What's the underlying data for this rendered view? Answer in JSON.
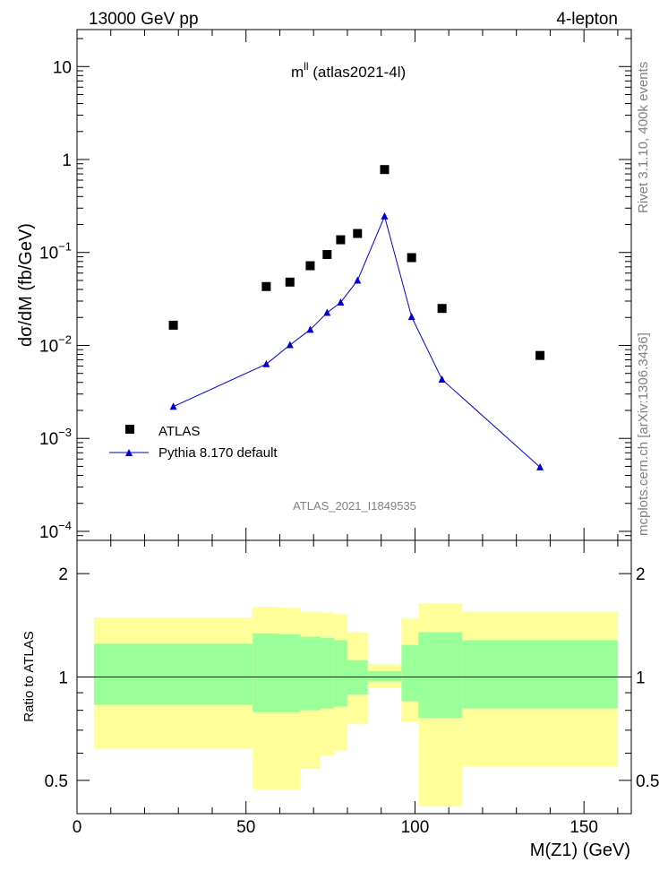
{
  "header": {
    "left": "13000 GeV pp",
    "right": "4-lepton"
  },
  "side_labels": {
    "rivet": "Rivet 3.1.10,  400k events",
    "mcplots": "mcplots.cern.ch [arXiv:1306.3436]"
  },
  "chart_data": [
    {
      "type": "scatter",
      "title_main": "m",
      "title_sup": "ll",
      "title_rest": " (atlas2021-4l)",
      "watermark": "ATLAS_2021_I1849535",
      "xlabel": "",
      "ylabel": "dσ/dM (fb/GeV)",
      "yscale": "log",
      "xlim": [
        0,
        164
      ],
      "ylim": [
        8e-05,
        25
      ],
      "y_ticks": [
        {
          "value": 10,
          "label": "10"
        },
        {
          "value": 1,
          "label": "1"
        },
        {
          "value": 0.1,
          "base": "10",
          "exp": "−1"
        },
        {
          "value": 0.01,
          "base": "10",
          "exp": "−2"
        },
        {
          "value": 0.001,
          "base": "10",
          "exp": "−3"
        },
        {
          "value": 0.0001,
          "base": "10",
          "exp": "−4"
        }
      ],
      "legend_position": "bottom-left",
      "series": [
        {
          "name": "ATLAS",
          "marker": "square",
          "color": "#000000",
          "points": [
            [
              28.5,
              0.0165
            ],
            [
              56,
              0.043
            ],
            [
              63,
              0.048
            ],
            [
              69,
              0.072
            ],
            [
              74,
              0.095
            ],
            [
              78,
              0.137
            ],
            [
              83,
              0.16
            ],
            [
              91,
              0.78
            ],
            [
              99,
              0.088
            ],
            [
              108,
              0.025
            ],
            [
              137,
              0.0078
            ]
          ]
        },
        {
          "name": "Pythia 8.170 default",
          "marker": "triangle-line",
          "color": "#0000cc",
          "points": [
            [
              28.5,
              0.0022
            ],
            [
              56,
              0.0063
            ],
            [
              63,
              0.0101
            ],
            [
              69,
              0.0148
            ],
            [
              74,
              0.0225
            ],
            [
              78,
              0.029
            ],
            [
              83,
              0.05
            ],
            [
              91,
              0.245
            ],
            [
              99,
              0.0203
            ],
            [
              108,
              0.0043
            ],
            [
              137,
              0.00049
            ]
          ]
        }
      ]
    },
    {
      "type": "area",
      "xlabel": "M(Z1) (GeV)",
      "ylabel": "Ratio to ATLAS",
      "yscale": "log",
      "xlim": [
        0,
        164
      ],
      "ylim": [
        0.4,
        2.5
      ],
      "reference_line": 1,
      "x_ticks": [
        0,
        50,
        100,
        150
      ],
      "y_ticks": [
        0.5,
        1,
        2
      ],
      "bands": [
        {
          "x_low": 5,
          "x_high": 52,
          "yellow": [
            0.62,
            1.49
          ],
          "green": [
            0.83,
            1.25
          ]
        },
        {
          "x_low": 52,
          "x_high": 60,
          "yellow": [
            0.47,
            1.6
          ],
          "green": [
            0.79,
            1.34
          ]
        },
        {
          "x_low": 60,
          "x_high": 66,
          "yellow": [
            0.47,
            1.59
          ],
          "green": [
            0.79,
            1.33
          ]
        },
        {
          "x_low": 66,
          "x_high": 72,
          "yellow": [
            0.54,
            1.55
          ],
          "green": [
            0.8,
            1.31
          ]
        },
        {
          "x_low": 72,
          "x_high": 76,
          "yellow": [
            0.59,
            1.54
          ],
          "green": [
            0.81,
            1.3
          ]
        },
        {
          "x_low": 76,
          "x_high": 80,
          "yellow": [
            0.61,
            1.52
          ],
          "green": [
            0.82,
            1.28
          ]
        },
        {
          "x_low": 80,
          "x_high": 86,
          "yellow": [
            0.73,
            1.35
          ],
          "green": [
            0.89,
            1.12
          ]
        },
        {
          "x_low": 86,
          "x_high": 96,
          "yellow": [
            0.93,
            1.09
          ],
          "green": [
            0.97,
            1.04
          ]
        },
        {
          "x_low": 96,
          "x_high": 101,
          "yellow": [
            0.74,
            1.48
          ],
          "green": [
            0.85,
            1.24
          ]
        },
        {
          "x_low": 101,
          "x_high": 114,
          "yellow": [
            0.42,
            1.64
          ],
          "green": [
            0.76,
            1.35
          ]
        },
        {
          "x_low": 114,
          "x_high": 160,
          "yellow": [
            0.55,
            1.55
          ],
          "green": [
            0.81,
            1.28
          ]
        }
      ],
      "colors": {
        "yellow": "#ffff99",
        "green": "#99ff99"
      }
    }
  ]
}
